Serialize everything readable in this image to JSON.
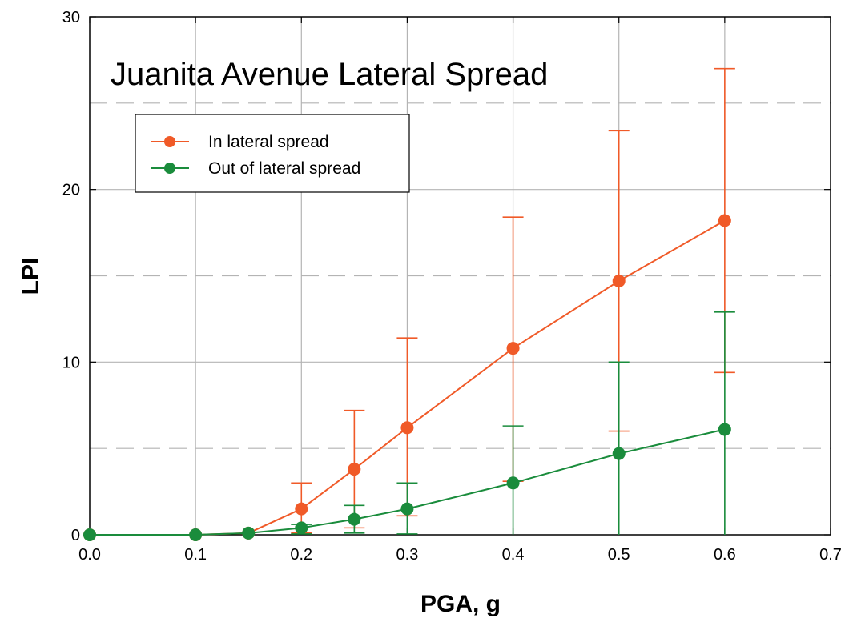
{
  "chart_data": {
    "type": "line",
    "title": "Juanita Avenue Lateral Spread",
    "xlabel": "PGA, g",
    "ylabel": "LPI",
    "xlim": [
      0.0,
      0.7
    ],
    "ylim": [
      0,
      30
    ],
    "xticks": [
      "0.0",
      "0.1",
      "0.2",
      "0.3",
      "0.4",
      "0.5",
      "0.6",
      "0.7"
    ],
    "yticks": [
      "0",
      "10",
      "20",
      "30"
    ],
    "grid": "vertical solid at x ticks; horizontal dashed at 5, 15, 25; solid at 10, 20",
    "legend_position": "top-left",
    "series": [
      {
        "name": "In lateral spread",
        "color": "#F05A28",
        "points": [
          {
            "x": 0.0,
            "y": 0,
            "err_low": null,
            "err_high": null
          },
          {
            "x": 0.1,
            "y": 0,
            "err_low": null,
            "err_high": null
          },
          {
            "x": 0.15,
            "y": 0.1,
            "err_low": null,
            "err_high": null
          },
          {
            "x": 0.2,
            "y": 1.5,
            "err_low": 0.1,
            "err_high": 3.0
          },
          {
            "x": 0.25,
            "y": 3.8,
            "err_low": 0.4,
            "err_high": 7.2
          },
          {
            "x": 0.3,
            "y": 6.2,
            "err_low": 1.1,
            "err_high": 11.4
          },
          {
            "x": 0.4,
            "y": 10.8,
            "err_low": 3.1,
            "err_high": 18.4
          },
          {
            "x": 0.5,
            "y": 14.7,
            "err_low": 6.0,
            "err_high": 23.4
          },
          {
            "x": 0.6,
            "y": 18.2,
            "err_low": 9.4,
            "err_high": 27.0
          }
        ]
      },
      {
        "name": "Out of lateral spread",
        "color": "#1A8C3C",
        "points": [
          {
            "x": 0.0,
            "y": 0,
            "err_low": null,
            "err_high": null
          },
          {
            "x": 0.1,
            "y": 0,
            "err_low": null,
            "err_high": null
          },
          {
            "x": 0.15,
            "y": 0.1,
            "err_low": null,
            "err_high": null
          },
          {
            "x": 0.2,
            "y": 0.4,
            "err_low": 0.05,
            "err_high": 0.6
          },
          {
            "x": 0.25,
            "y": 0.9,
            "err_low": 0.1,
            "err_high": 1.7
          },
          {
            "x": 0.3,
            "y": 1.5,
            "err_low": 0.05,
            "err_high": 3.0
          },
          {
            "x": 0.4,
            "y": 3.0,
            "err_low": 0.0,
            "err_high": 6.3
          },
          {
            "x": 0.5,
            "y": 4.7,
            "err_low": 0.0,
            "err_high": 10.0
          },
          {
            "x": 0.6,
            "y": 6.1,
            "err_low": 0.0,
            "err_high": 12.9
          }
        ]
      }
    ]
  }
}
